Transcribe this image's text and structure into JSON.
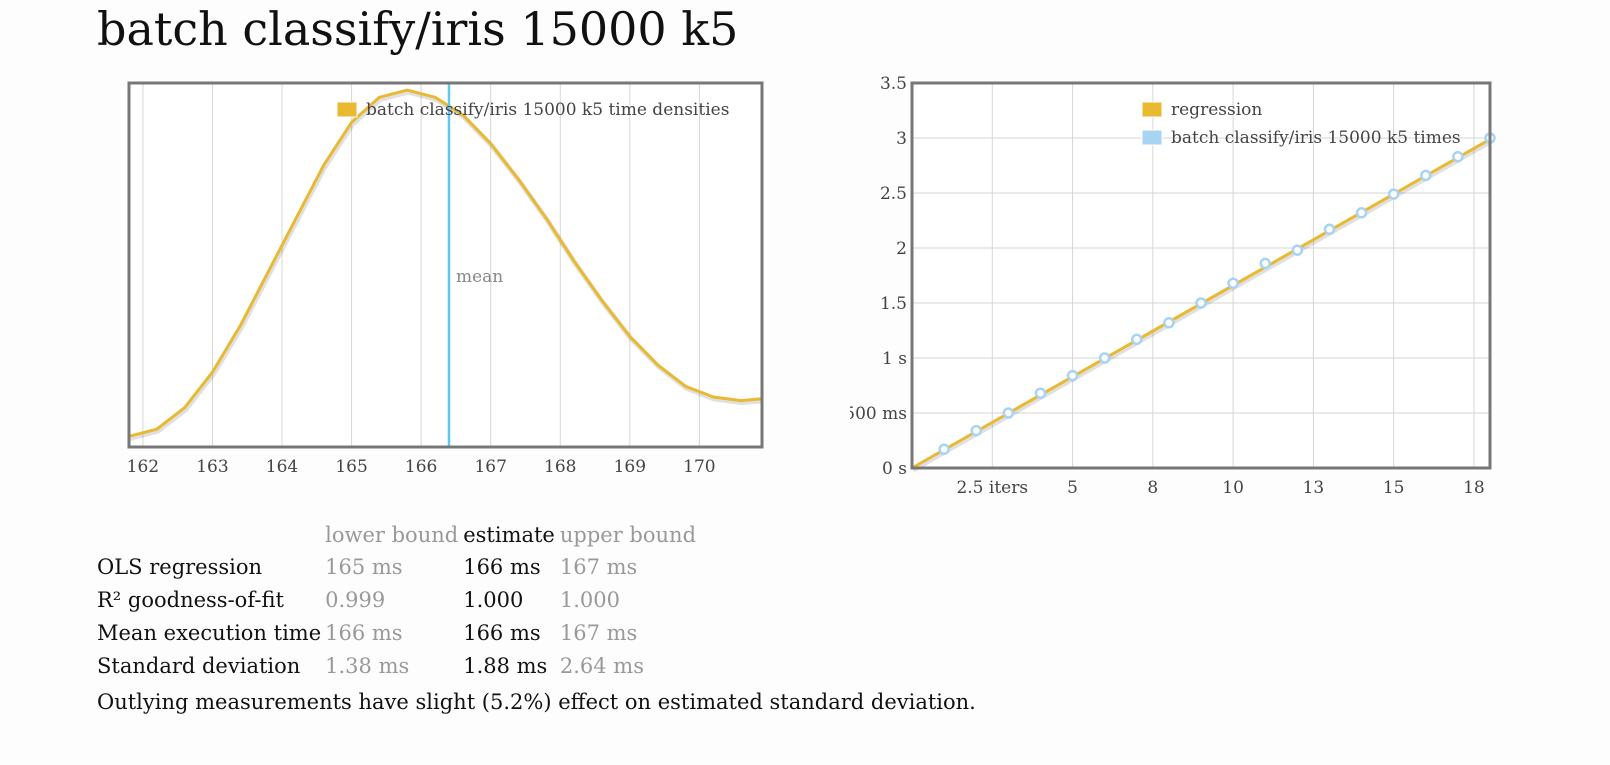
{
  "title": "batch classify/iris 15000 k5",
  "chart_data": [
    {
      "type": "line",
      "name": "density",
      "legend": "batch classify/iris 15000 k5 time densities",
      "legend_placement": "top-right",
      "xlim": [
        161.8,
        170.9
      ],
      "x_ticks": [
        "162",
        "163",
        "164",
        "165",
        "166",
        "167",
        "168",
        "169",
        "170"
      ],
      "x": [
        161.8,
        162.2,
        162.6,
        163.0,
        163.4,
        163.8,
        164.2,
        164.6,
        165.0,
        165.4,
        165.8,
        166.2,
        166.6,
        167.0,
        167.4,
        167.8,
        168.2,
        168.6,
        169.0,
        169.4,
        169.8,
        170.2,
        170.6,
        170.9
      ],
      "y": [
        0.03,
        0.05,
        0.11,
        0.21,
        0.34,
        0.49,
        0.64,
        0.79,
        0.91,
        0.98,
        1.0,
        0.98,
        0.93,
        0.85,
        0.75,
        0.64,
        0.52,
        0.41,
        0.31,
        0.23,
        0.17,
        0.14,
        0.13,
        0.135
      ],
      "ylim": [
        0,
        1.02
      ],
      "mean": 166.4,
      "mean_label": "mean",
      "color": "#e8b931",
      "mean_color": "#5ec8f0",
      "grid": true
    },
    {
      "type": "scatter",
      "name": "regression",
      "legend": [
        "regression",
        "batch classify/iris 15000 k5 times"
      ],
      "legend_placement": "top-center",
      "x_ticks": [
        {
          "value": 2.5,
          "label": "2.5 iters"
        },
        {
          "value": 5,
          "label": "5"
        },
        {
          "value": 7.5,
          "label": "8"
        },
        {
          "value": 10,
          "label": "10"
        },
        {
          "value": 12.5,
          "label": "13"
        },
        {
          "value": 15,
          "label": "15"
        },
        {
          "value": 17.5,
          "label": "18"
        }
      ],
      "y_ticks": [
        {
          "value": 0,
          "label": "0 s"
        },
        {
          "value": 0.5,
          "label": "500 ms"
        },
        {
          "value": 1.0,
          "label": "1 s"
        },
        {
          "value": 1.5,
          "label": "1.5"
        },
        {
          "value": 2.0,
          "label": "2"
        },
        {
          "value": 2.5,
          "label": "2.5"
        },
        {
          "value": 3.0,
          "label": "3"
        },
        {
          "value": 3.5,
          "label": "3.5"
        }
      ],
      "xlim": [
        0,
        18
      ],
      "ylim": [
        0,
        3.5
      ],
      "x": [
        1,
        2,
        3,
        4,
        5,
        6,
        7,
        8,
        9,
        10,
        11,
        12,
        13,
        14,
        15,
        16,
        17,
        18
      ],
      "y": [
        0.17,
        0.34,
        0.5,
        0.68,
        0.84,
        1.0,
        1.17,
        1.32,
        1.5,
        1.68,
        1.86,
        1.98,
        2.17,
        2.32,
        2.49,
        2.66,
        2.83,
        3.0
      ],
      "slope": 0.166,
      "line_color": "#e8b931",
      "point_color": "#a8d4f3",
      "grid": true
    }
  ],
  "stats": {
    "headers": {
      "lower": "lower bound",
      "estimate": "estimate",
      "upper": "upper bound"
    },
    "rows": [
      {
        "name": "OLS regression",
        "lower": "165 ms",
        "estimate": "166 ms",
        "upper": "167 ms"
      },
      {
        "name": "R² goodness-of-fit",
        "lower": "0.999",
        "estimate": "1.000",
        "upper": "1.000"
      },
      {
        "name": "Mean execution time",
        "lower": "166 ms",
        "estimate": "166 ms",
        "upper": "167 ms"
      },
      {
        "name": "Standard deviation",
        "lower": "1.38 ms",
        "estimate": "1.88 ms",
        "upper": "2.64 ms"
      }
    ]
  },
  "outlier_note": "Outlying measurements have slight (5.2%) effect on estimated standard deviation."
}
